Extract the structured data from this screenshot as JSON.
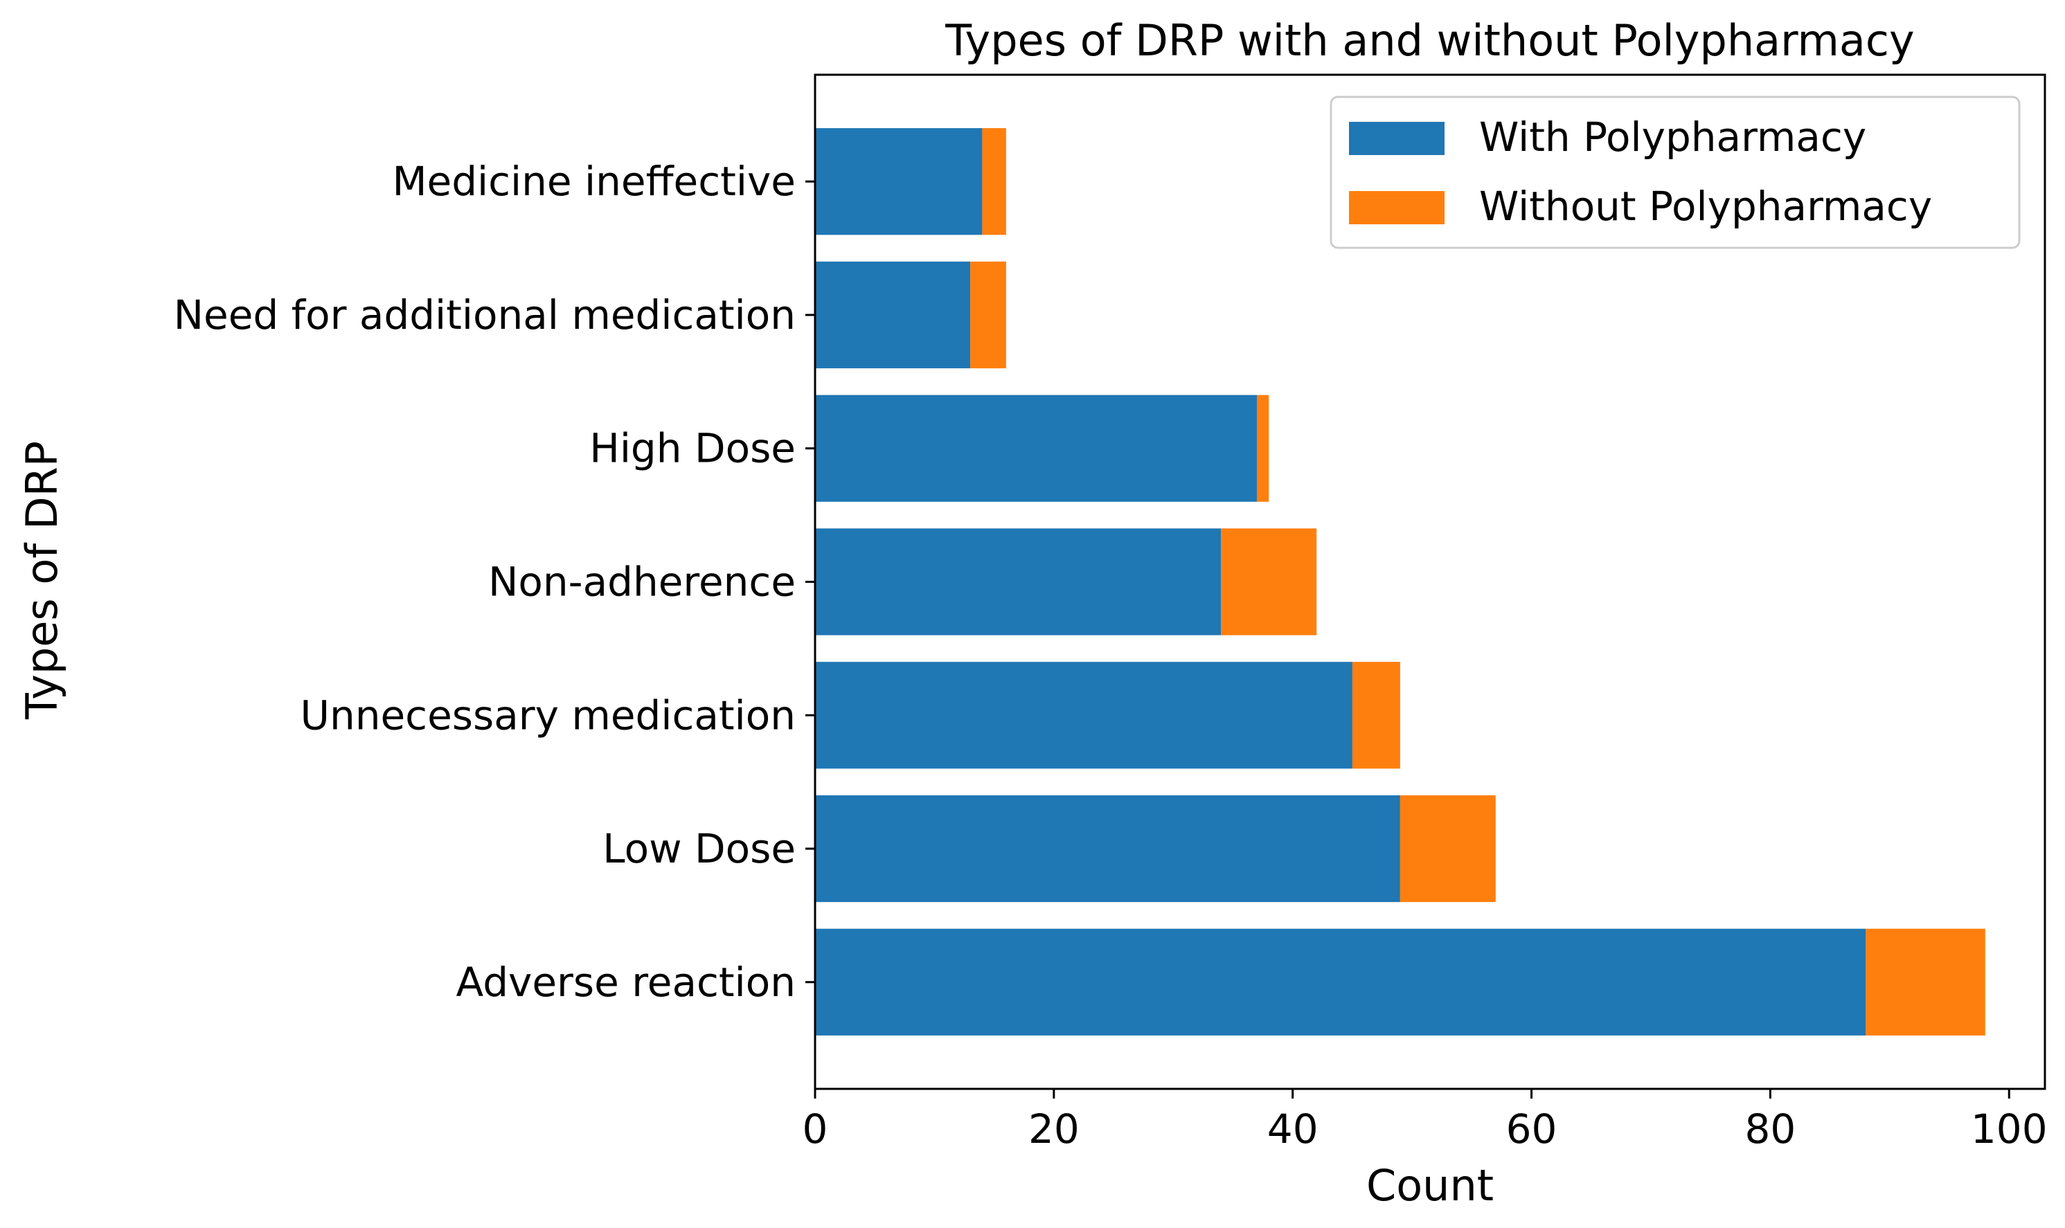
{
  "chart_data": {
    "type": "bar",
    "orientation": "horizontal",
    "stacked": true,
    "title": "Types of DRP with and without Polypharmacy",
    "xlabel": "Count",
    "ylabel": "Types of DRP",
    "xlim": [
      0,
      103
    ],
    "xticks": [
      0,
      20,
      40,
      60,
      80,
      100
    ],
    "grid": false,
    "legend_position": "top-right",
    "categories": [
      "Adverse reaction",
      "Low Dose",
      "Unnecessary medication",
      "Non-adherence",
      "High Dose",
      "Need for additional medication",
      "Medicine ineffective"
    ],
    "series": [
      {
        "name": "With Polypharmacy",
        "color": "#1f77b4",
        "values": [
          88,
          49,
          45,
          34,
          37,
          13,
          14
        ]
      },
      {
        "name": "Without Polypharmacy",
        "color": "#ff7f0e",
        "values": [
          10,
          8,
          4,
          8,
          1,
          3,
          2
        ]
      }
    ]
  }
}
